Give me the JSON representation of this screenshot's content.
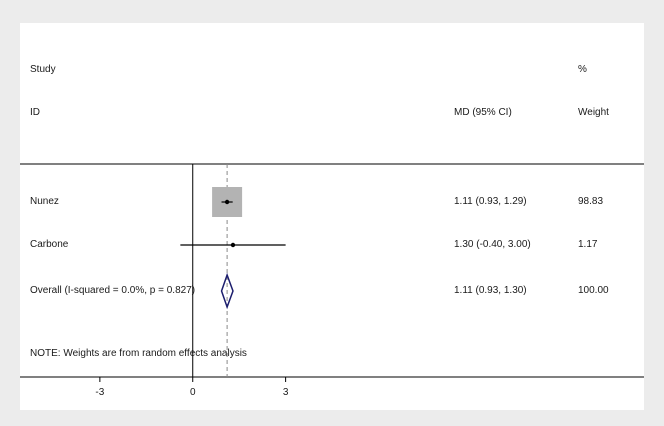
{
  "chart_data": {
    "type": "forest",
    "header": {
      "study_top": "Study",
      "study_bottom": "ID",
      "effect": "MD (95% CI)",
      "weight_top": "%",
      "weight_bottom": "Weight"
    },
    "studies": [
      {
        "label": "Nunez",
        "estimate": 1.11,
        "lower": 0.93,
        "upper": 1.29,
        "ci_text": "1.11 (0.93, 1.29)",
        "weight": "98.83",
        "weight_pct": 98.83
      },
      {
        "label": "Carbone",
        "estimate": 1.3,
        "lower": -0.4,
        "upper": 3.0,
        "ci_text": "1.30 (-0.40, 3.00)",
        "weight": "1.17",
        "weight_pct": 1.17
      }
    ],
    "overall": {
      "label": "Overall  (I-squared = 0.0%, p = 0.827)",
      "estimate": 1.11,
      "lower": 0.93,
      "upper": 1.3,
      "ci_text": "1.11 (0.93, 1.30)",
      "weight": "100.00"
    },
    "note": "NOTE: Weights are from random effects analysis",
    "x_ticks": [
      -3,
      0,
      3
    ],
    "x_tick_labels": [
      "-3",
      "0",
      "3"
    ],
    "xlim": [
      -5.58,
      8.31
    ],
    "null_line": 0,
    "colors": {
      "box": "#b3b3b3",
      "line": "#000000",
      "diamond": "#1c1e6e",
      "dashed": "#8a8a8a"
    }
  }
}
